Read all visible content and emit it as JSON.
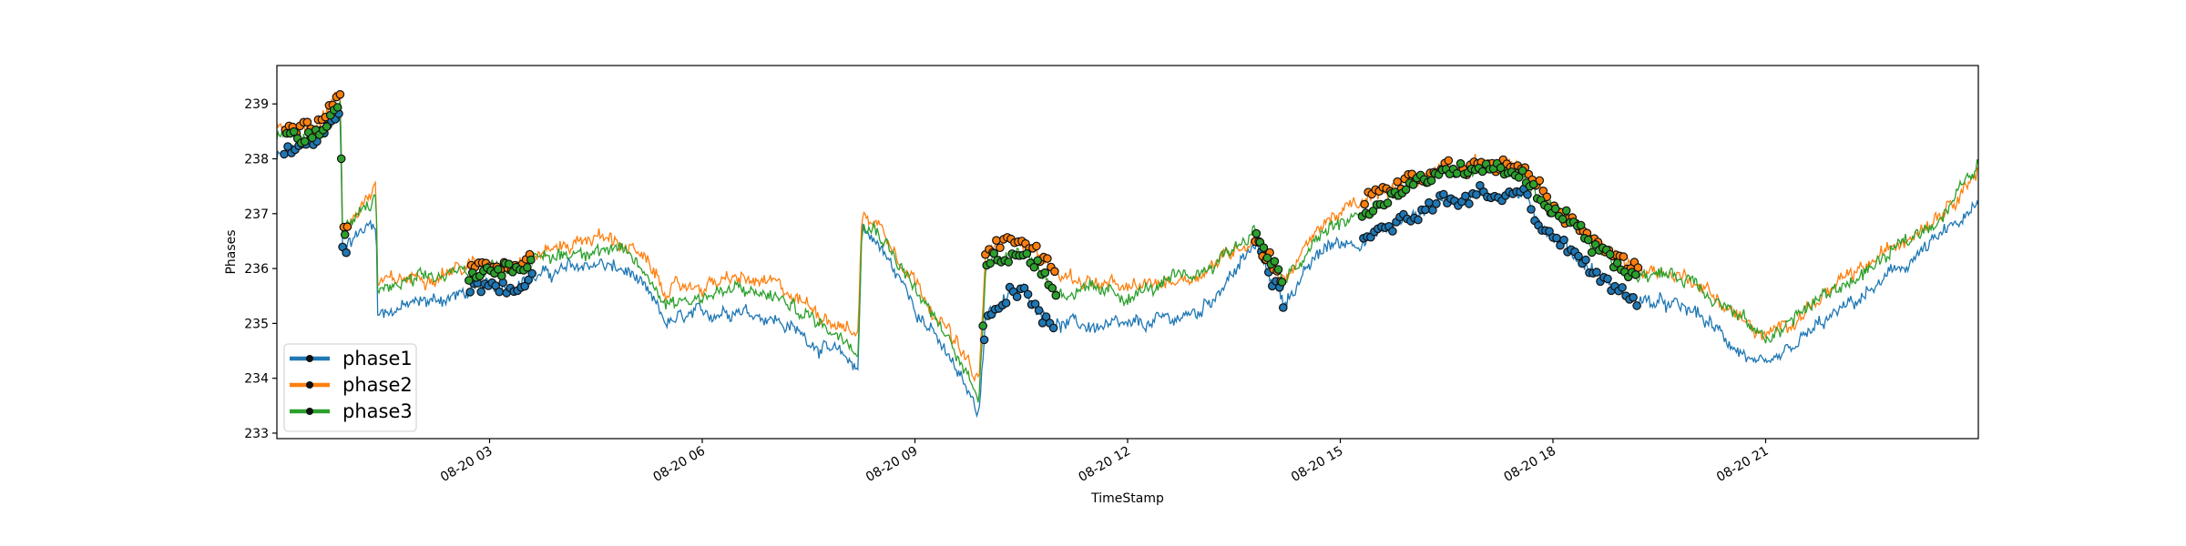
{
  "chart_data": {
    "type": "line",
    "xlabel": "TimeStamp",
    "ylabel": "Phases",
    "x_tick_labels": [
      "08-20 03",
      "08-20 06",
      "08-20 09",
      "08-20 12",
      "08-20 15",
      "08-20 18",
      "08-20 21"
    ],
    "x_tick_hours": [
      3,
      6,
      9,
      12,
      15,
      18,
      21
    ],
    "xlim_hours": [
      0,
      24
    ],
    "y_ticks": [
      233,
      234,
      235,
      236,
      237,
      238,
      239
    ],
    "ylim": [
      232.9,
      239.7
    ],
    "grid": false,
    "legend": {
      "position": "lower-left",
      "entries": [
        "phase1",
        "phase2",
        "phase3"
      ]
    },
    "series": [
      {
        "name": "phase1",
        "color": "#1f77b4",
        "profile": [
          [
            0,
            238.0
          ],
          [
            0.5,
            238.3
          ],
          [
            0.9,
            238.8
          ],
          [
            0.92,
            236.4
          ],
          [
            1.4,
            236.9
          ],
          [
            1.42,
            235.2
          ],
          [
            2.5,
            235.5
          ],
          [
            3.5,
            235.8
          ],
          [
            4.5,
            236.1
          ],
          [
            5.0,
            235.9
          ],
          [
            5.5,
            235.0
          ],
          [
            6.5,
            235.3
          ],
          [
            7.0,
            235.1
          ],
          [
            8.2,
            234.2
          ],
          [
            8.25,
            236.8
          ],
          [
            8.5,
            236.4
          ],
          [
            9.5,
            234.3
          ],
          [
            9.9,
            233.4
          ],
          [
            10.0,
            235.2
          ],
          [
            10.5,
            235.6
          ],
          [
            11.0,
            235.0
          ],
          [
            12.0,
            234.9
          ],
          [
            13.0,
            235.2
          ],
          [
            13.8,
            236.4
          ],
          [
            14.2,
            235.4
          ],
          [
            14.8,
            236.4
          ],
          [
            15.5,
            236.6
          ],
          [
            16.5,
            237.3
          ],
          [
            17.5,
            237.4
          ],
          [
            18.0,
            236.6
          ],
          [
            19.0,
            235.5
          ],
          [
            20.0,
            235.2
          ],
          [
            21.0,
            234.1
          ],
          [
            21.7,
            234.9
          ],
          [
            22.5,
            235.6
          ],
          [
            23.5,
            236.6
          ],
          [
            24.0,
            237.1
          ]
        ]
      },
      {
        "name": "phase2",
        "color": "#ff7f0e",
        "profile": [
          [
            0,
            238.6
          ],
          [
            0.5,
            238.6
          ],
          [
            0.9,
            239.2
          ],
          [
            0.92,
            236.7
          ],
          [
            1.4,
            237.5
          ],
          [
            1.42,
            235.7
          ],
          [
            2.5,
            236.0
          ],
          [
            3.5,
            236.2
          ],
          [
            4.5,
            236.6
          ],
          [
            5.0,
            236.4
          ],
          [
            5.5,
            235.6
          ],
          [
            6.5,
            235.8
          ],
          [
            7.0,
            235.7
          ],
          [
            8.2,
            234.8
          ],
          [
            8.25,
            237.0
          ],
          [
            8.5,
            236.8
          ],
          [
            9.5,
            234.8
          ],
          [
            9.9,
            233.9
          ],
          [
            10.0,
            236.3
          ],
          [
            10.5,
            236.6
          ],
          [
            11.0,
            235.9
          ],
          [
            12.0,
            235.6
          ],
          [
            13.0,
            235.9
          ],
          [
            13.8,
            236.6
          ],
          [
            14.2,
            235.8
          ],
          [
            14.8,
            236.9
          ],
          [
            15.5,
            237.3
          ],
          [
            16.5,
            237.9
          ],
          [
            17.5,
            237.9
          ],
          [
            18.0,
            237.1
          ],
          [
            19.0,
            236.1
          ],
          [
            20.0,
            235.8
          ],
          [
            21.0,
            234.7
          ],
          [
            21.7,
            235.4
          ],
          [
            22.5,
            236.1
          ],
          [
            23.5,
            237.1
          ],
          [
            24.0,
            237.8
          ]
        ]
      },
      {
        "name": "phase3",
        "color": "#2ca02c",
        "profile": [
          [
            0,
            238.4
          ],
          [
            0.5,
            238.4
          ],
          [
            0.9,
            239.0
          ],
          [
            0.92,
            236.6
          ],
          [
            1.4,
            237.3
          ],
          [
            1.42,
            235.6
          ],
          [
            2.5,
            235.9
          ],
          [
            3.5,
            236.1
          ],
          [
            4.5,
            236.4
          ],
          [
            5.0,
            236.2
          ],
          [
            5.5,
            235.4
          ],
          [
            6.5,
            235.6
          ],
          [
            7.0,
            235.5
          ],
          [
            8.2,
            234.6
          ],
          [
            8.25,
            236.9
          ],
          [
            8.5,
            236.7
          ],
          [
            9.5,
            234.6
          ],
          [
            9.9,
            233.7
          ],
          [
            10.0,
            236.1
          ],
          [
            10.5,
            236.4
          ],
          [
            11.0,
            235.6
          ],
          [
            12.0,
            235.5
          ],
          [
            13.0,
            235.9
          ],
          [
            13.8,
            236.7
          ],
          [
            14.2,
            235.7
          ],
          [
            14.8,
            236.7
          ],
          [
            15.5,
            237.1
          ],
          [
            16.5,
            237.8
          ],
          [
            17.5,
            237.8
          ],
          [
            18.0,
            237.0
          ],
          [
            19.0,
            236.0
          ],
          [
            20.0,
            235.8
          ],
          [
            21.0,
            234.7
          ],
          [
            21.7,
            235.4
          ],
          [
            22.5,
            236.0
          ],
          [
            23.5,
            237.0
          ],
          [
            24.0,
            237.9
          ]
        ]
      }
    ],
    "marked_intervals_hours": [
      [
        0.1,
        1.0
      ],
      [
        2.7,
        3.6
      ],
      [
        9.95,
        11.0
      ],
      [
        13.8,
        14.2
      ],
      [
        15.3,
        19.2
      ]
    ]
  }
}
